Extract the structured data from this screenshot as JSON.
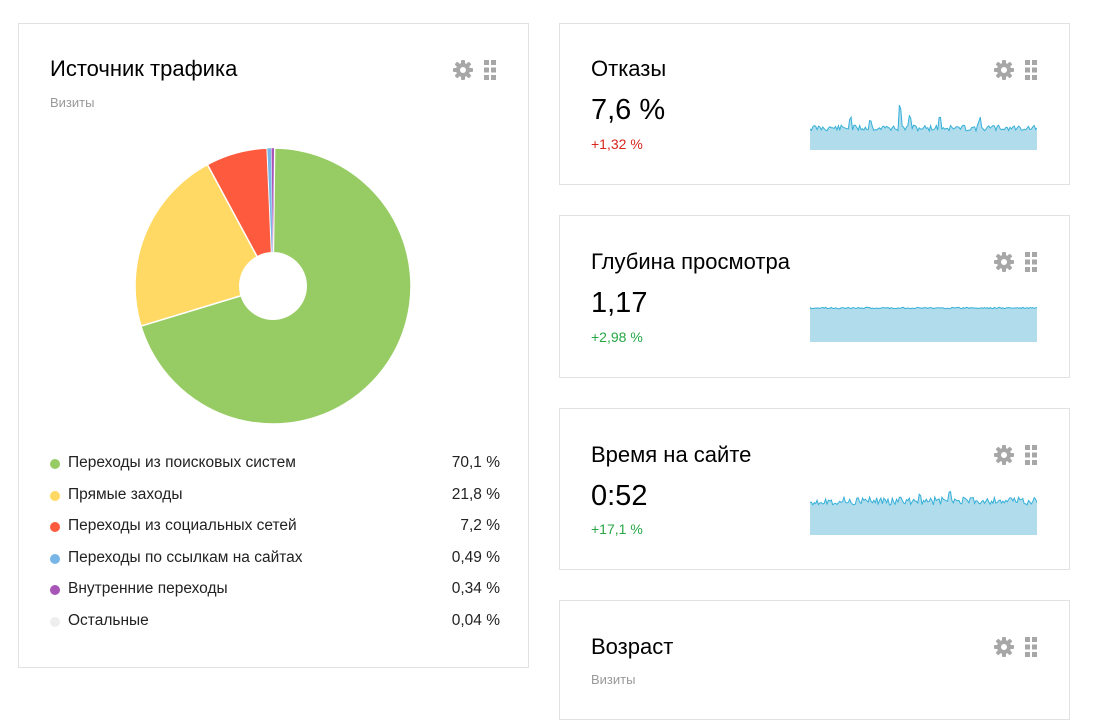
{
  "colors": {
    "positive": "#28a745",
    "negative": "#d9261c",
    "spark_fill": "#b1dcec",
    "spark_line": "#36b0d8",
    "icon": "#a7a7a7"
  },
  "traffic": {
    "title": "Источник трафика",
    "subtitle": "Визиты",
    "icons": [
      "gear-icon",
      "drag-handle-icon"
    ],
    "chart_data": {
      "type": "pie",
      "title": "Источник трафика",
      "subtitle": "Визиты",
      "donut": true,
      "slices": [
        {
          "label": "Переходы из поисковых систем",
          "value": 70.1,
          "value_text": "70,1 %",
          "color": "#97cc64"
        },
        {
          "label": "Прямые заходы",
          "value": 21.8,
          "value_text": "21,8 %",
          "color": "#ffd963"
        },
        {
          "label": "Переходы из социальных сетей",
          "value": 7.2,
          "value_text": "7,2 %",
          "color": "#fd5a3e"
        },
        {
          "label": "Переходы по ссылкам на сайтах",
          "value": 0.49,
          "value_text": "0,49 %",
          "color": "#77b6e7"
        },
        {
          "label": "Внутренние переходы",
          "value": 0.34,
          "value_text": "0,34 %",
          "color": "#a955b8"
        },
        {
          "label": "Остальные",
          "value": 0.04,
          "value_text": "0,04 %",
          "color": "#eeeeee"
        }
      ]
    }
  },
  "bounce": {
    "title": "Отказы",
    "value": "7,6 %",
    "delta": "+1,32 %",
    "trend": "negative",
    "icons": [
      "gear-icon",
      "drag-handle-icon"
    ]
  },
  "depth": {
    "title": "Глубина просмотра",
    "value": "1,17",
    "delta": "+2,98 %",
    "trend": "positive",
    "icons": [
      "gear-icon",
      "drag-handle-icon"
    ]
  },
  "time": {
    "title": "Время на сайте",
    "value": "0:52",
    "delta": "+17,1 %",
    "trend": "positive",
    "icons": [
      "gear-icon",
      "drag-handle-icon"
    ]
  },
  "age": {
    "title": "Возраст",
    "subtitle": "Визиты",
    "icons": [
      "gear-icon",
      "drag-handle-icon"
    ]
  }
}
